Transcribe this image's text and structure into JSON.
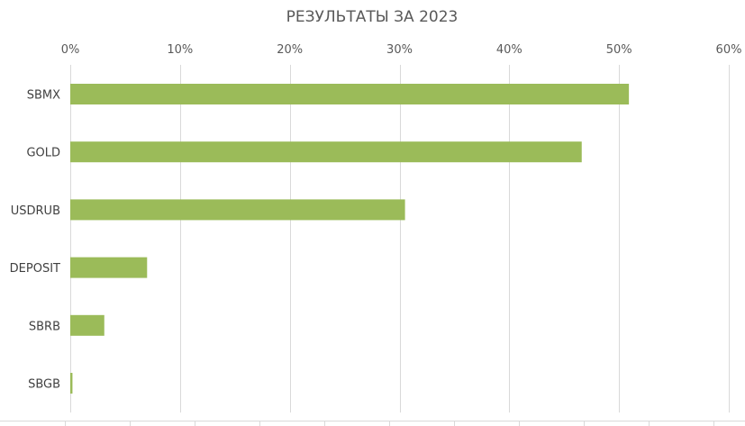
{
  "chart_data": {
    "type": "bar",
    "orientation": "horizontal",
    "title": "РЕЗУЛЬТАТЫ ЗА 2023",
    "categories": [
      "SBMX",
      "GOLD",
      "USDRUB",
      "DEPOSIT",
      "SBRB",
      "SBGB"
    ],
    "values": [
      0.509,
      0.466,
      0.305,
      0.07,
      0.031,
      0.002
    ],
    "xlim": [
      0,
      0.6
    ],
    "x_ticks": [
      0,
      0.1,
      0.2,
      0.3,
      0.4,
      0.5,
      0.6
    ],
    "x_tick_labels": [
      "0%",
      "10%",
      "20%",
      "30%",
      "40%",
      "50%",
      "60%"
    ],
    "x_axis_position": "top",
    "grid": true,
    "legend": "none",
    "bar_color": "#9bbb59",
    "grid_color": "#d9d9d9"
  }
}
